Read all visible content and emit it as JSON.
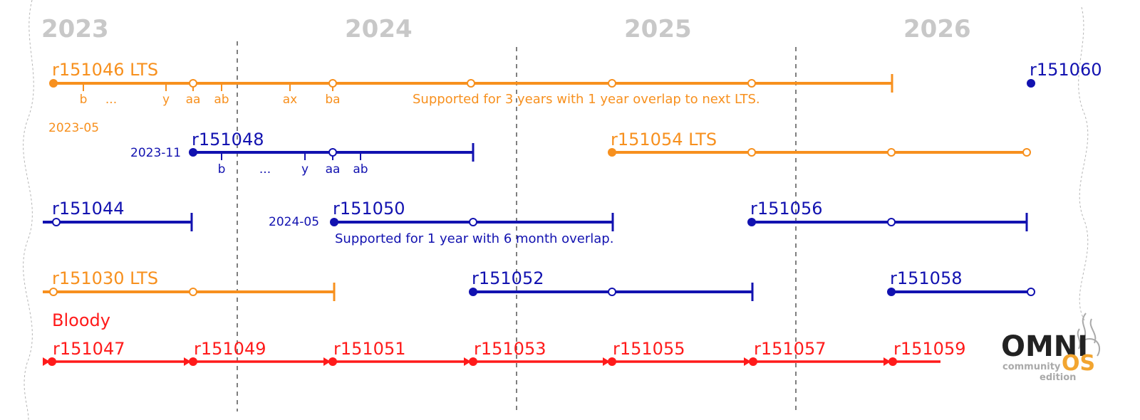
{
  "colors": {
    "lts": "#f7901e",
    "stable": "#1212b0",
    "bloody": "#ff1a1a",
    "year_label": "#c8c8c8",
    "divider": "#555555",
    "logo_dark": "#222222",
    "logo_accent": "#f2a530",
    "logo_grey": "#aaaaaa"
  },
  "years": [
    "2023",
    "2024",
    "2025",
    "2026"
  ],
  "releases": {
    "r151046": {
      "name": "r151046 LTS",
      "points": [
        "b",
        "...",
        "y",
        "aa",
        "ab",
        "ax",
        "ba"
      ],
      "date": "2023-05",
      "note": "Supported for 3 years with 1 year overlap to next LTS."
    },
    "r151060": {
      "name": "r151060"
    },
    "r151048": {
      "name": "r151048",
      "date": "2023-11",
      "points": [
        "b",
        "...",
        "y",
        "aa",
        "ab"
      ]
    },
    "r151054": {
      "name": "r151054 LTS"
    },
    "r151044": {
      "name": "r151044"
    },
    "r151050": {
      "name": "r151050",
      "date": "2024-05",
      "note": "Supported for 1 year with 6 month overlap."
    },
    "r151056": {
      "name": "r151056"
    },
    "r151030": {
      "name": "r151030 LTS"
    },
    "r151052": {
      "name": "r151052"
    },
    "r151058": {
      "name": "r151058"
    }
  },
  "bloody": {
    "label": "Bloody",
    "releases": [
      "r151047",
      "r151049",
      "r151051",
      "r151053",
      "r151055",
      "r151057",
      "r151059"
    ]
  },
  "logo": {
    "word1": "OMNI",
    "word2": "OS",
    "line1": "community",
    "line2": "edition"
  }
}
